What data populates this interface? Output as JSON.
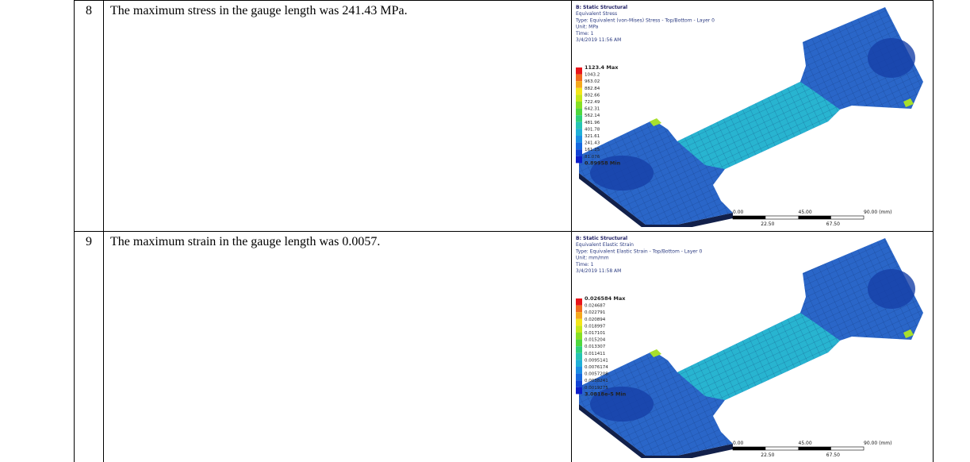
{
  "table": {
    "rows": [
      {
        "number": "8",
        "text": "The maximum stress in the gauge length was 241.43 MPa.",
        "figure": {
          "header": [
            "B: Static Structural",
            "Equivalent Stress",
            "Type: Equivalent (von-Mises) Stress - Top/Bottom - Layer 0",
            "Unit: MPa",
            "Time: 1",
            "3/4/2019 11:56 AM"
          ],
          "legend": [
            "1123.4 Max",
            "1043.2",
            "963.02",
            "882.84",
            "802.66",
            "722.49",
            "642.31",
            "562.14",
            "481.96",
            "401.78",
            "321.61",
            "241.43",
            "161.25",
            "81.076",
            "0.89958 Min"
          ],
          "scale_top": [
            "0.00",
            "45.00",
            "90.00 (mm)"
          ],
          "scale_bottom": [
            "22.50",
            "67.50"
          ]
        }
      },
      {
        "number": "9",
        "text": "The maximum strain in the gauge length was 0.0057.",
        "figure": {
          "header": [
            "B: Static Structural",
            "Equivalent Elastic Strain",
            "Type: Equivalent Elastic Strain - Top/Bottom - Layer 0",
            "Unit: mm/mm",
            "Time: 1",
            "3/4/2019 11:58 AM"
          ],
          "legend": [
            "0.026584 Max",
            "0.024687",
            "0.022791",
            "0.020894",
            "0.018997",
            "0.017101",
            "0.015204",
            "0.013307",
            "0.011411",
            "0.0095141",
            "0.0076174",
            "0.0057208",
            "0.0038241",
            "0.0019275",
            "3.0818e-5 Min"
          ],
          "scale_top": [
            "0.00",
            "45.00",
            "90.00 (mm)"
          ],
          "scale_bottom": [
            "22.50",
            "67.50"
          ]
        }
      }
    ]
  }
}
